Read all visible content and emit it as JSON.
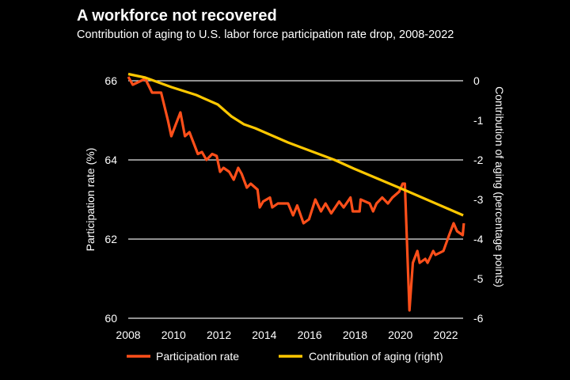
{
  "title": "A workforce not recovered",
  "subtitle": "Contribution of aging to U.S. labor force participation rate drop, 2008-2022",
  "chart_data": {
    "type": "line",
    "title": "A workforce not recovered",
    "xlabel": "",
    "ylabel_left": "Participation rate (%)",
    "ylabel_right": "Contribution of aging (percentage points)",
    "xlim": [
      2008,
      2022.8
    ],
    "ylim_left": [
      60,
      66
    ],
    "ylim_right": [
      -6,
      0
    ],
    "x_ticks": [
      "2008",
      "2010",
      "2012",
      "2014",
      "2016",
      "2018",
      "2020",
      "2022"
    ],
    "y_ticks_left": [
      "66",
      "64",
      "62",
      "60"
    ],
    "y_ticks_right": [
      "0",
      "-1",
      "-2",
      "-3",
      "-4",
      "-5",
      "-6"
    ],
    "grid": true,
    "legend_position": "bottom",
    "colors": {
      "participation": "#ff4f1a",
      "aging": "#ffc800",
      "grid": "#e6e6e6"
    },
    "series": [
      {
        "name": "Participation rate",
        "axis": "left",
        "x": [
          2008.0,
          2008.2,
          2008.75,
          2009.05,
          2009.45,
          2009.75,
          2009.9,
          2010.1,
          2010.3,
          2010.5,
          2010.7,
          2010.9,
          2011.07,
          2011.25,
          2011.45,
          2011.7,
          2011.9,
          2012.05,
          2012.2,
          2012.45,
          2012.65,
          2012.85,
          2013.0,
          2013.23,
          2013.4,
          2013.7,
          2013.8,
          2013.95,
          2014.25,
          2014.35,
          2014.6,
          2015.05,
          2015.27,
          2015.45,
          2015.73,
          2015.97,
          2016.25,
          2016.5,
          2016.7,
          2016.95,
          2017.3,
          2017.5,
          2017.8,
          2017.9,
          2018.2,
          2018.25,
          2018.65,
          2018.8,
          2018.95,
          2019.2,
          2019.45,
          2019.65,
          2019.95,
          2020.1,
          2020.2,
          2020.4,
          2020.55,
          2020.75,
          2020.85,
          2021.1,
          2021.2,
          2021.45,
          2021.55,
          2021.9,
          2022.15,
          2022.35,
          2022.5,
          2022.75,
          2022.8
        ],
        "values": [
          66.1,
          65.9,
          66.05,
          65.7,
          65.7,
          65.0,
          64.6,
          64.9,
          65.2,
          64.6,
          64.7,
          64.4,
          64.15,
          64.2,
          64.0,
          64.15,
          64.1,
          63.7,
          63.8,
          63.7,
          63.5,
          63.8,
          63.65,
          63.3,
          63.4,
          63.25,
          62.8,
          62.95,
          63.05,
          62.8,
          62.9,
          62.9,
          62.6,
          62.85,
          62.4,
          62.5,
          63.0,
          62.7,
          62.9,
          62.65,
          62.95,
          62.8,
          63.05,
          62.7,
          62.7,
          63.0,
          62.9,
          62.7,
          62.9,
          63.05,
          62.9,
          63.05,
          63.2,
          63.4,
          63.4,
          60.2,
          61.4,
          61.7,
          61.4,
          61.5,
          61.4,
          61.7,
          61.6,
          61.7,
          62.1,
          62.4,
          62.2,
          62.1,
          62.4
        ]
      },
      {
        "name": "Contribution of aging (right)",
        "axis": "right",
        "x": [
          2008.0,
          2008.75,
          2009.9,
          2011.0,
          2011.95,
          2012.55,
          2013.1,
          2013.6,
          2015.05,
          2017.1,
          2017.95,
          2020.35,
          2022.77
        ],
        "values": [
          0.17,
          0.08,
          -0.16,
          -0.36,
          -0.6,
          -0.9,
          -1.1,
          -1.2,
          -1.56,
          -2.0,
          -2.22,
          -2.8,
          -3.4
        ]
      }
    ]
  }
}
